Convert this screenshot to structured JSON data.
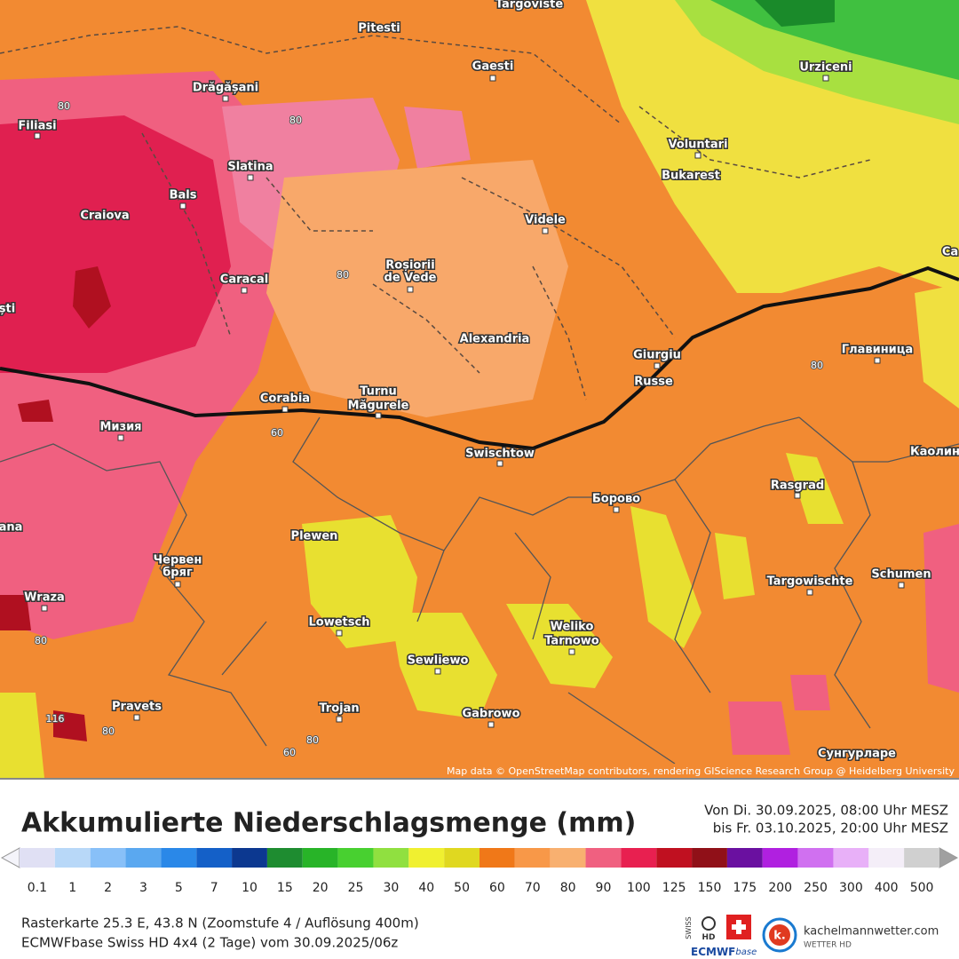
{
  "map": {
    "cities": [
      "Targoviste",
      "Pitesti",
      "Gaesti",
      "Drăgășani",
      "Filiasi",
      "Urziceni",
      "Voluntari",
      "Bukarest",
      "Slatina",
      "Bals",
      "Craiova",
      "Caracal",
      "Videle",
      "Roșiorii",
      "de Vede",
      "Alexandria",
      "Giurgiu",
      "Russe",
      "Corabia",
      "Turnu",
      "Măgurele",
      "Мизия",
      "Swischtow",
      "Rasgrad",
      "Главиница",
      "Каолин",
      "Борово",
      "Plewen",
      "Червен",
      "бряг",
      "Targowischte",
      "Schumen",
      "Wraza",
      "Lowetsch",
      "Weliko",
      "Tarnowo",
      "Sewliewo",
      "Pravets",
      "Trojan",
      "Gabrowo",
      "Сунгурларе",
      "ști",
      "ana",
      "Ca"
    ],
    "contour_labels": [
      "80",
      "80",
      "80",
      "80",
      "80",
      "80",
      "80",
      "60",
      "60",
      "116"
    ],
    "attribution": "Map data © OpenStreetMap contributors, rendering GIScience Research Group @ Heidelberg University"
  },
  "legend": {
    "title": "Akkumulierte Niederschlagsmenge (mm)",
    "period": [
      "Von Di. 30.09.2025, 08:00 Uhr MESZ",
      "bis Fr. 03.10.2025, 20:00 Uhr MESZ"
    ],
    "labels": [
      0.1,
      1,
      2,
      3,
      5,
      7,
      10,
      15,
      20,
      25,
      30,
      40,
      50,
      60,
      70,
      80,
      90,
      100,
      125,
      150,
      175,
      200,
      250,
      300,
      400,
      500
    ],
    "colors": [
      "#e0e0f4",
      "#b8d8f8",
      "#88c0f8",
      "#5aa8f0",
      "#2a88e8",
      "#1460c8",
      "#0c3890",
      "#1e8c30",
      "#28b428",
      "#48d030",
      "#90e040",
      "#f0f030",
      "#e0d820",
      "#f07818",
      "#f89848",
      "#f8b070",
      "#f06080",
      "#e82050",
      "#c01020",
      "#901018",
      "#6a10a0",
      "#b020e0",
      "#d070f0",
      "#e8b0f8",
      "#f4eef8",
      "#d0d0d0"
    ]
  },
  "footer": {
    "raster": "Rasterkarte 25.3 E, 43.8 N (Zoomstufe 4 / Auflösung 400m)",
    "model": "ECMWFbase Swiss HD 4x4 (2 Tage) vom 30.09.2025/06z"
  },
  "logos": {
    "swiss": "SWISS",
    "hd": "HD",
    "ecmwf": "ECMWF",
    "base": "base",
    "k": "k.",
    "site": "kachelmannwetter.com",
    "sub": "WETTER HD"
  }
}
